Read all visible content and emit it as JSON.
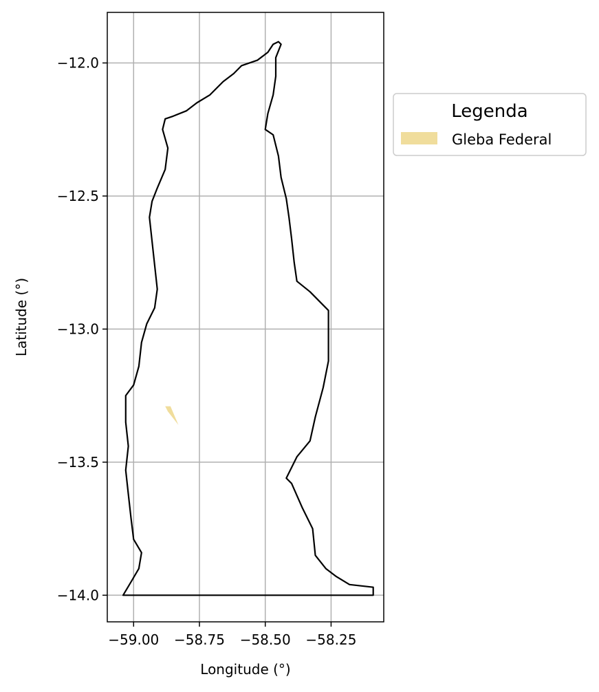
{
  "chart_data": {
    "type": "map",
    "xlabel": "Longitude (°)",
    "ylabel": "Latitude (°)",
    "xlim": [
      -59.1,
      -58.05
    ],
    "ylim": [
      -14.1,
      -11.81
    ],
    "xticks": [
      -59.0,
      -58.75,
      -58.5,
      -58.25
    ],
    "xtick_labels": [
      "−59.00",
      "−58.75",
      "−58.50",
      "−58.25"
    ],
    "yticks": [
      -12.0,
      -12.5,
      -13.0,
      -13.5,
      -14.0
    ],
    "ytick_labels": [
      "−12.0",
      "−12.5",
      "−13.0",
      "−13.5",
      "−14.0"
    ],
    "grid": true,
    "legend": {
      "title": "Legenda",
      "placement": "right, outside axes",
      "entries": [
        {
          "label": "Gleba Federal",
          "color": "#F0DD9C"
        }
      ]
    },
    "boundary": {
      "color": "#000000",
      "fill": "none",
      "coordinates": [
        [
          -58.45,
          -11.92
        ],
        [
          -58.47,
          -11.93
        ],
        [
          -58.49,
          -11.96
        ],
        [
          -58.53,
          -11.99
        ],
        [
          -58.59,
          -12.01
        ],
        [
          -58.62,
          -12.04
        ],
        [
          -58.66,
          -12.07
        ],
        [
          -58.71,
          -12.12
        ],
        [
          -58.76,
          -12.15
        ],
        [
          -58.8,
          -12.18
        ],
        [
          -58.85,
          -12.2
        ],
        [
          -58.88,
          -12.21
        ],
        [
          -58.89,
          -12.25
        ],
        [
          -58.87,
          -12.32
        ],
        [
          -58.88,
          -12.4
        ],
        [
          -58.91,
          -12.47
        ],
        [
          -58.93,
          -12.52
        ],
        [
          -58.94,
          -12.58
        ],
        [
          -58.93,
          -12.67
        ],
        [
          -58.92,
          -12.76
        ],
        [
          -58.91,
          -12.85
        ],
        [
          -58.92,
          -12.92
        ],
        [
          -58.95,
          -12.98
        ],
        [
          -58.97,
          -13.05
        ],
        [
          -58.98,
          -13.14
        ],
        [
          -59.0,
          -13.21
        ],
        [
          -59.03,
          -13.25
        ],
        [
          -59.03,
          -13.35
        ],
        [
          -59.02,
          -13.44
        ],
        [
          -59.03,
          -13.53
        ],
        [
          -59.02,
          -13.62
        ],
        [
          -59.01,
          -13.71
        ],
        [
          -59.0,
          -13.79
        ],
        [
          -58.97,
          -13.84
        ],
        [
          -58.98,
          -13.9
        ],
        [
          -59.01,
          -13.95
        ],
        [
          -59.04,
          -14.0
        ],
        [
          -58.38,
          -14.0
        ],
        [
          -58.09,
          -14.0
        ],
        [
          -58.09,
          -13.97
        ],
        [
          -58.18,
          -13.96
        ],
        [
          -58.23,
          -13.93
        ],
        [
          -58.27,
          -13.9
        ],
        [
          -58.31,
          -13.85
        ],
        [
          -58.32,
          -13.75
        ],
        [
          -58.36,
          -13.67
        ],
        [
          -58.4,
          -13.58
        ],
        [
          -58.42,
          -13.56
        ],
        [
          -58.38,
          -13.48
        ],
        [
          -58.33,
          -13.42
        ],
        [
          -58.31,
          -13.33
        ],
        [
          -58.28,
          -13.22
        ],
        [
          -58.26,
          -13.12
        ],
        [
          -58.26,
          -13.0
        ],
        [
          -58.26,
          -12.93
        ],
        [
          -58.29,
          -12.9
        ],
        [
          -58.33,
          -12.86
        ],
        [
          -58.38,
          -12.82
        ],
        [
          -58.39,
          -12.75
        ],
        [
          -58.4,
          -12.66
        ],
        [
          -58.41,
          -12.58
        ],
        [
          -58.42,
          -12.51
        ],
        [
          -58.44,
          -12.43
        ],
        [
          -58.45,
          -12.35
        ],
        [
          -58.47,
          -12.27
        ],
        [
          -58.5,
          -12.25
        ],
        [
          -58.49,
          -12.19
        ],
        [
          -58.47,
          -12.12
        ],
        [
          -58.46,
          -12.05
        ],
        [
          -58.46,
          -11.98
        ],
        [
          -58.44,
          -11.93
        ],
        [
          -58.45,
          -11.92
        ]
      ]
    },
    "features": [
      {
        "name": "Gleba Federal",
        "color": "#F0DD9C",
        "coordinates": [
          [
            -58.88,
            -13.29
          ],
          [
            -58.86,
            -13.29
          ],
          [
            -58.83,
            -13.36
          ],
          [
            -58.87,
            -13.31
          ],
          [
            -58.88,
            -13.29
          ]
        ]
      }
    ]
  }
}
